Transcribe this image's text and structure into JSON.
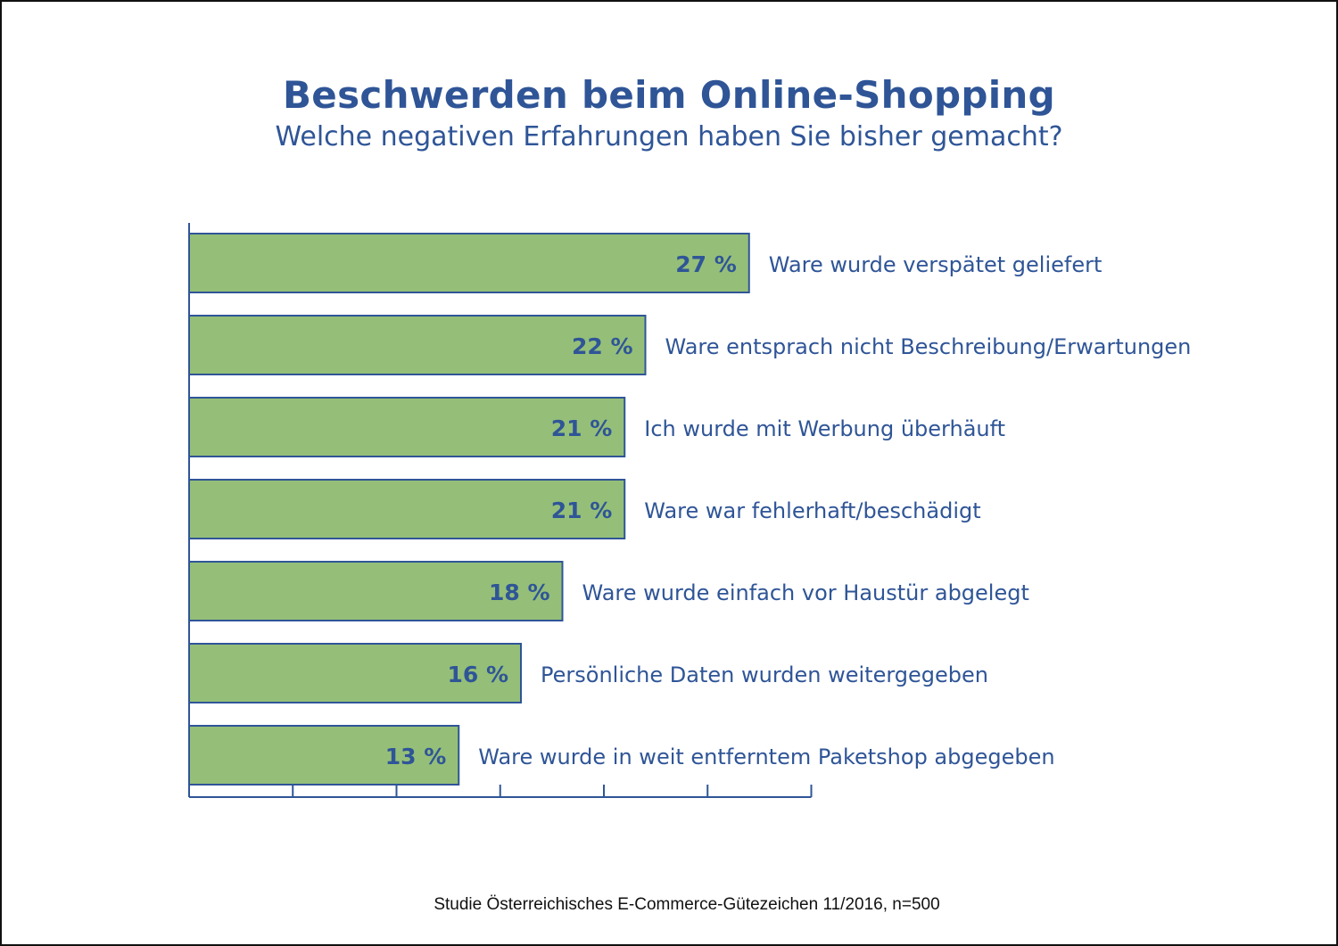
{
  "title": "Beschwerden beim Online-Shopping",
  "subtitle": "Welche negativen Erfahrungen haben Sie bisher gemacht?",
  "source": "Studie Österreichisches E-Commerce-Gütezeichen 11/2016, n=500",
  "colors": {
    "bar_fill": "#95bf78",
    "bar_stroke": "#2f5597",
    "text": "#2f5597",
    "axis": "#2f5597"
  },
  "chart_data": {
    "type": "bar",
    "orientation": "horizontal",
    "unit": "%",
    "xlim": [
      0,
      30
    ],
    "grid": false,
    "categories": [
      "Ware wurde verspätet geliefert",
      "Ware entsprach nicht Beschreibung/Erwartungen",
      "Ich wurde mit Werbung überhäuft",
      "Ware war fehlerhaft/beschädigt",
      "Ware wurde einfach vor Haustür abgelegt",
      "Persönliche Daten wurden weitergegeben",
      "Ware wurde in weit entferntem Paketshop abgegeben"
    ],
    "values": [
      27,
      22,
      21,
      21,
      18,
      16,
      13
    ],
    "value_labels": [
      "27 %",
      "22 %",
      "21 %",
      "21 %",
      "18 %",
      "16 %",
      "13 %"
    ]
  }
}
